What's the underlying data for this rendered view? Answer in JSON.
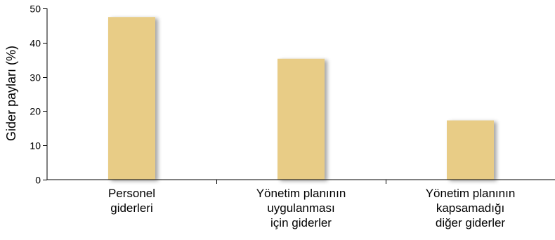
{
  "chart_data": {
    "type": "bar",
    "title": "",
    "xlabel": "",
    "ylabel": "Gider payları (%)",
    "ylim": [
      0,
      50
    ],
    "yticks": [
      0,
      10,
      20,
      30,
      40,
      50
    ],
    "grid": false,
    "legend": "none",
    "bar_color": "#E8CC86",
    "shadow_color": "#D9D9D9",
    "categories": [
      [
        "Personel",
        "giderleri"
      ],
      [
        "Yönetim planının",
        "uygulanması",
        "için giderler"
      ],
      [
        "Yönetim planının",
        "kapsamadığı",
        "diğer giderler"
      ]
    ],
    "values": [
      47.5,
      35.3,
      17.3
    ]
  }
}
